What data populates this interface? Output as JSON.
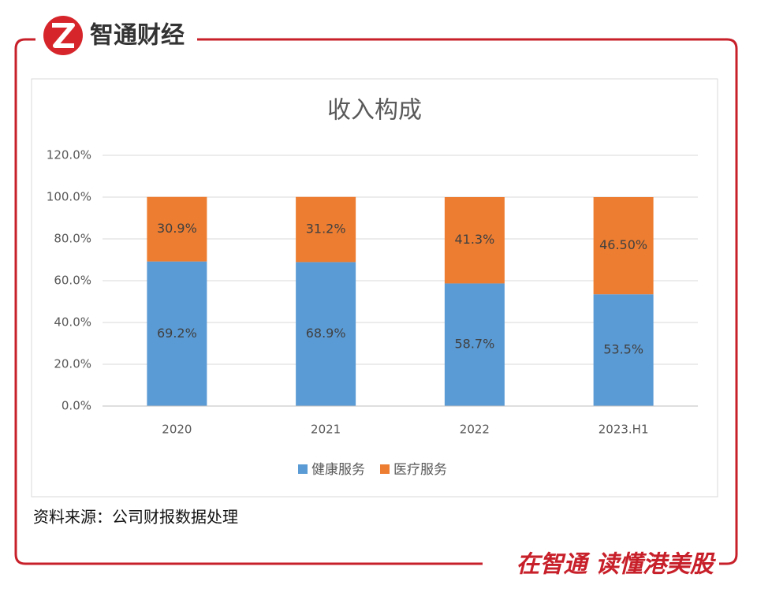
{
  "header": {
    "brand": "智通财经"
  },
  "chart_data": {
    "type": "stacked-bar",
    "title": "收入构成",
    "categories": [
      "2020",
      "2021",
      "2022",
      "2023.H1"
    ],
    "series": [
      {
        "name": "健康服务",
        "color": "#5b9bd5",
        "values": [
          69.2,
          68.9,
          58.7,
          53.5
        ],
        "value_labels": [
          "69.2%",
          "68.9%",
          "58.7%",
          "53.5%"
        ]
      },
      {
        "name": "医疗服务",
        "color": "#ed7d31",
        "values": [
          30.9,
          31.2,
          41.3,
          46.5
        ],
        "value_labels": [
          "30.9%",
          "31.2%",
          "41.3%",
          "46.50%"
        ]
      }
    ],
    "ylim": [
      0,
      120
    ],
    "yticks": [
      {
        "value": 0,
        "label": "0.0%"
      },
      {
        "value": 20,
        "label": "20.0%"
      },
      {
        "value": 40,
        "label": "40.0%"
      },
      {
        "value": 60,
        "label": "60.0%"
      },
      {
        "value": 80,
        "label": "80.0%"
      },
      {
        "value": 100,
        "label": "100.0%"
      },
      {
        "value": 120,
        "label": "120.0%"
      }
    ],
    "grid": true,
    "legend": "bottom"
  },
  "footer": {
    "source": "资料来源：公司财报数据处理",
    "slogan": "在智通 读懂港美股"
  }
}
